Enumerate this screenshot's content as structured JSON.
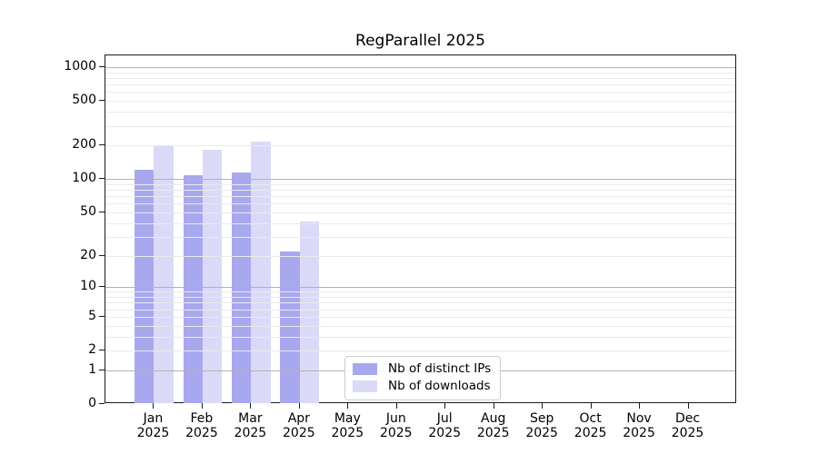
{
  "chart_data": {
    "type": "bar",
    "title": "RegParallel 2025",
    "y_scale": "log1p",
    "y_ticks": [
      0,
      1,
      2,
      5,
      10,
      20,
      50,
      100,
      200,
      500,
      1000
    ],
    "ylim": [
      0,
      1280
    ],
    "grid": "horizontal major (powers of 10) + minor (2-9 per decade), drawn over bars",
    "months": [
      "Jan",
      "Feb",
      "Mar",
      "Apr",
      "May",
      "Jun",
      "Jul",
      "Aug",
      "Sep",
      "Oct",
      "Nov",
      "Dec"
    ],
    "year": "2025",
    "series": [
      {
        "name": "Nb of distinct IPs",
        "color": "#a8a8ef",
        "values": [
          120,
          109,
          115,
          22,
          0,
          0,
          0,
          0,
          0,
          0,
          0,
          0
        ]
      },
      {
        "name": "Nb of downloads",
        "color": "#dadaf8",
        "values": [
          198,
          184,
          217,
          41,
          0,
          0,
          0,
          0,
          0,
          0,
          0,
          0
        ]
      }
    ],
    "legend_position": "bottom-center"
  },
  "colors": {
    "background": "#ffffff",
    "axis": "#1a1a1a",
    "grid_major": "#b2b2b2",
    "grid_minor": "#eaeaea",
    "text": "#000000",
    "legend_border": "#cccccc",
    "bar_distinct_ips": "#a8a8ef",
    "bar_downloads": "#dadaf8"
  }
}
